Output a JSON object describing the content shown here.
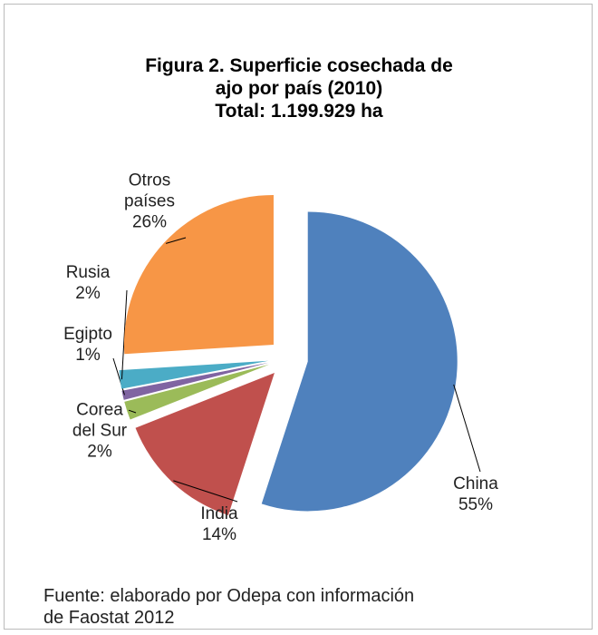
{
  "chart_data": {
    "type": "pie",
    "title": "Figura 2. Superficie cosechada de ajo por país (2010)",
    "subtitle": "Total: 1.199.929 ha",
    "categories": [
      "China",
      "India",
      "Corea del Sur",
      "Egipto",
      "Rusia",
      "Otros países"
    ],
    "values": [
      55,
      14,
      2,
      1,
      2,
      26
    ],
    "value_labels": [
      "55%",
      "14%",
      "2%",
      "1%",
      "2%",
      "26%"
    ],
    "colors": [
      "#4f81bd",
      "#c0504d",
      "#9bbb59",
      "#8064a2",
      "#4bacc6",
      "#f79646"
    ],
    "source": "Fuente: elaborado por Odepa con información de Faostat 2012"
  }
}
